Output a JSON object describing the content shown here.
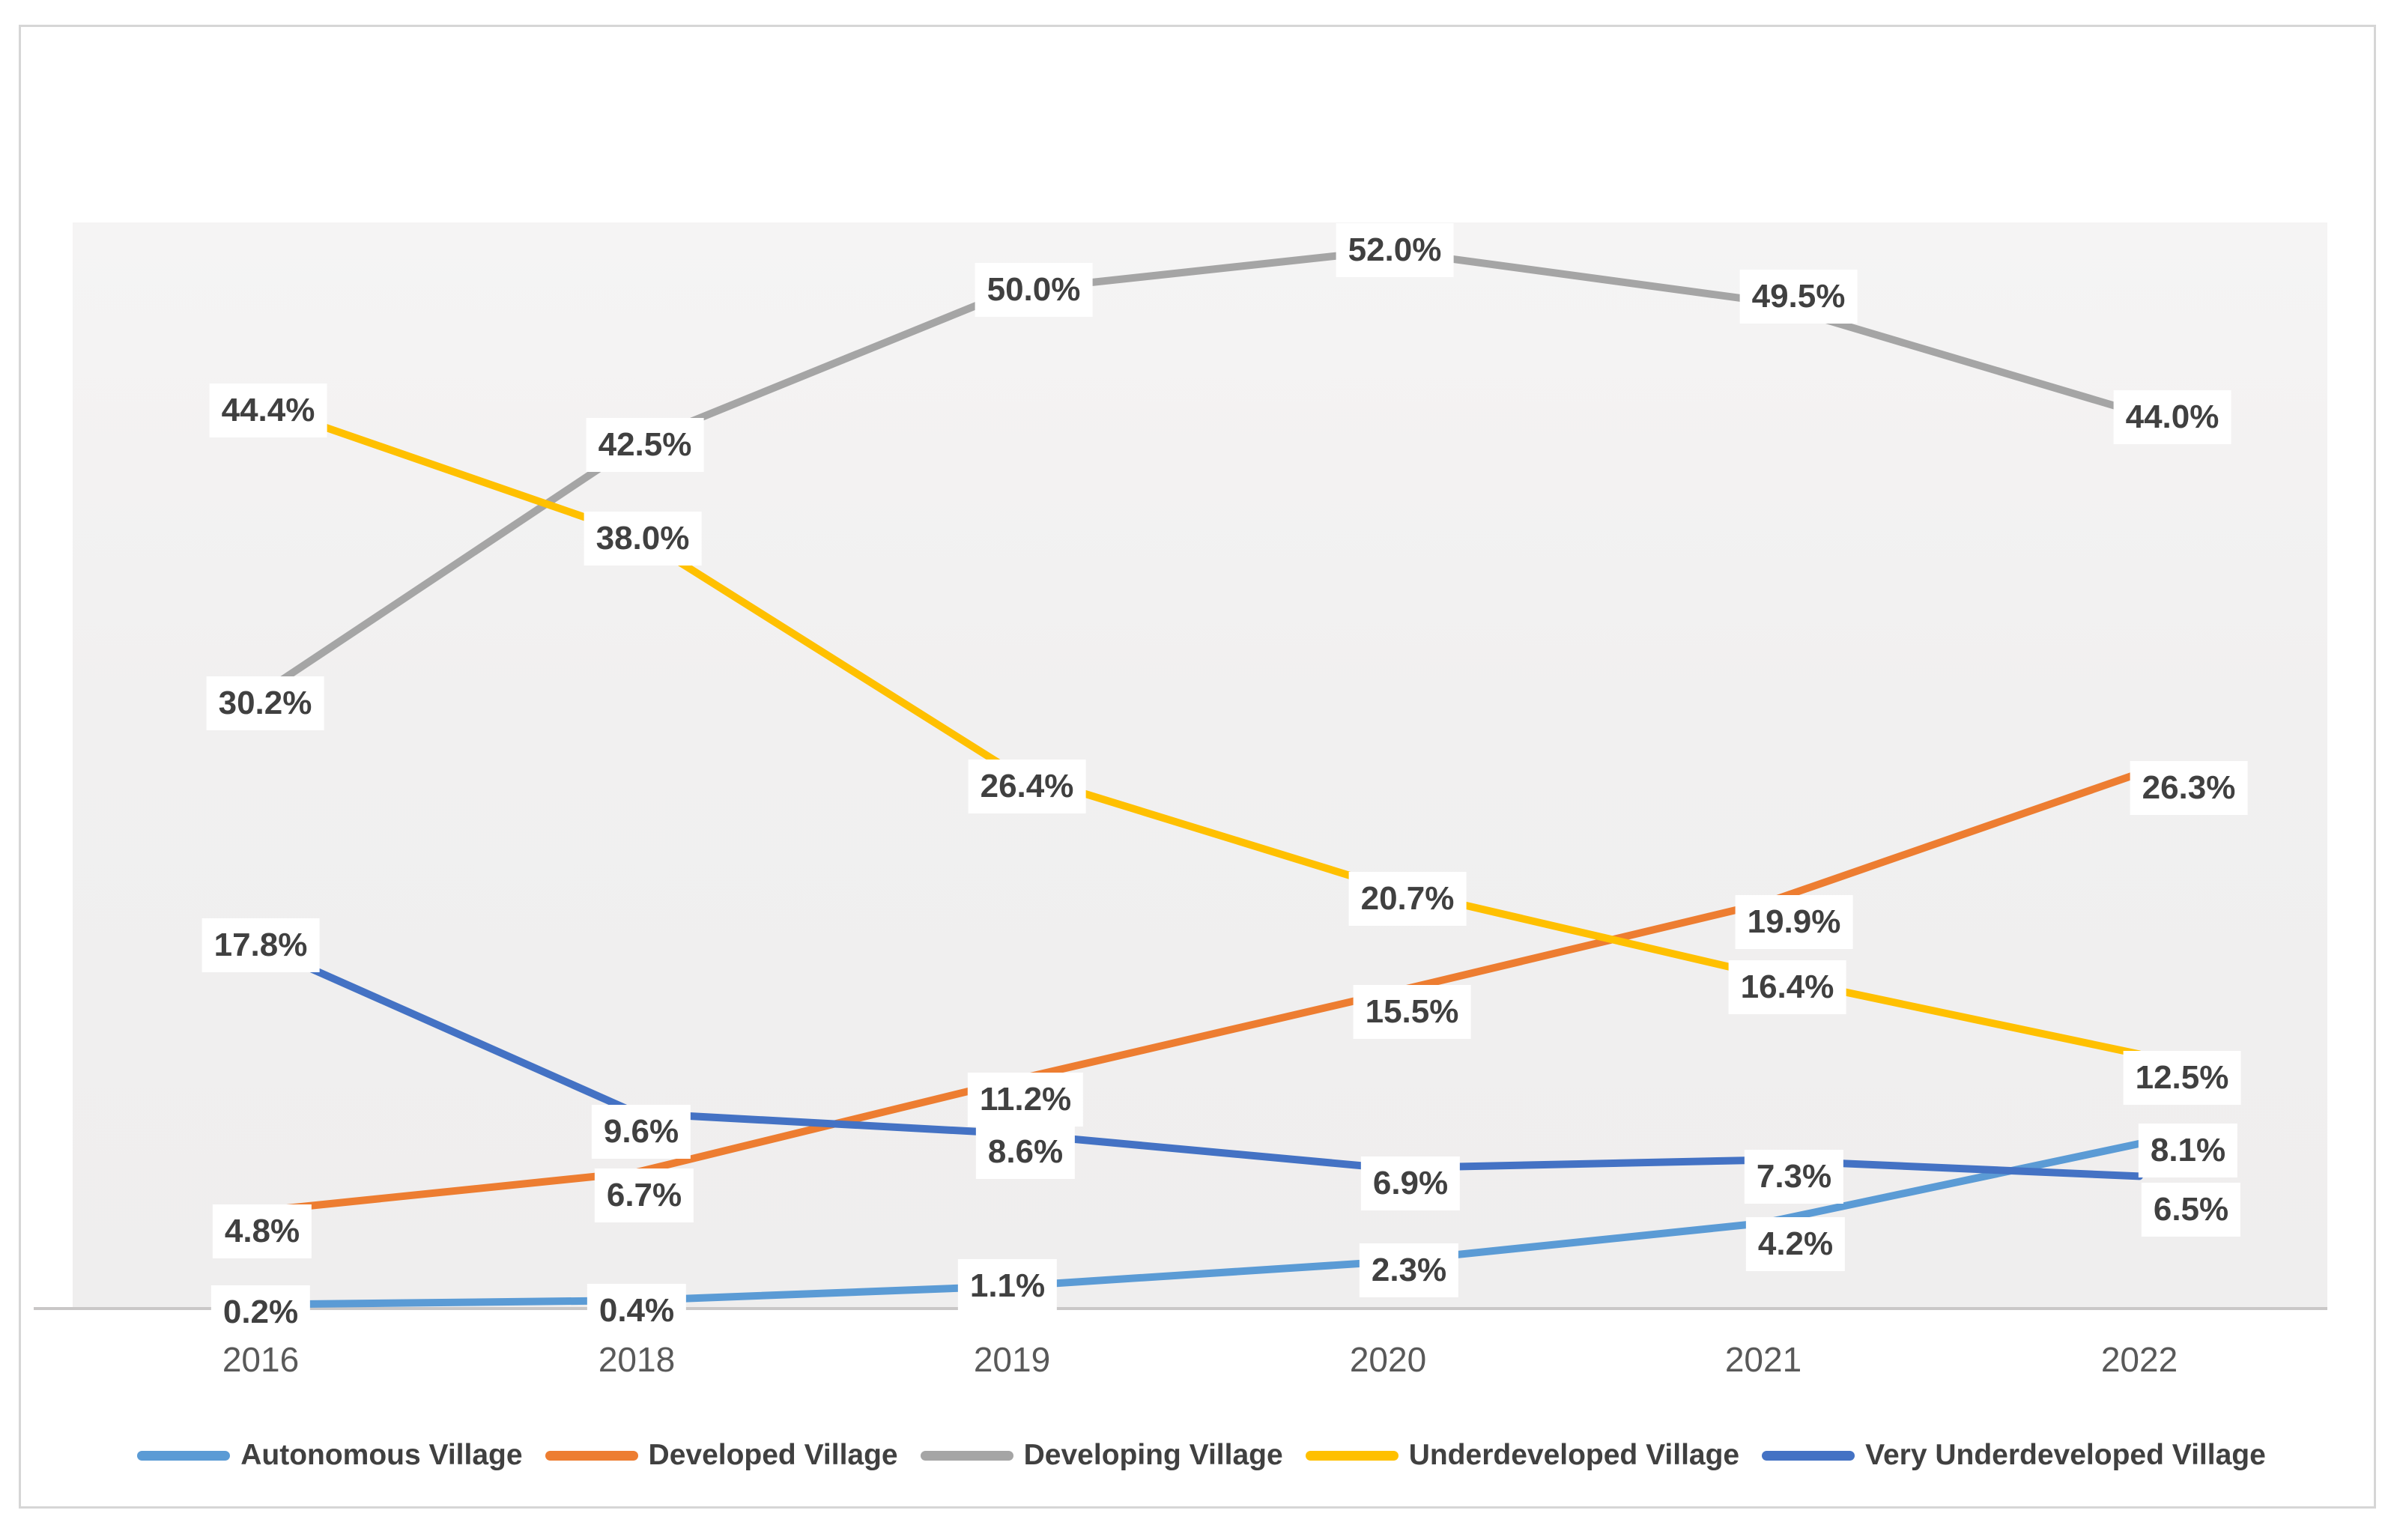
{
  "chart_data": {
    "type": "line",
    "title": "",
    "xlabel": "",
    "ylabel": "",
    "categories": [
      "2016",
      "2018",
      "2019",
      "2020",
      "2021",
      "2022"
    ],
    "series": [
      {
        "name": "Autonomous Village",
        "color": "#5B9BD5",
        "values": [
          0.2,
          0.4,
          1.1,
          2.3,
          4.2,
          8.1
        ],
        "labels": [
          "0.2%",
          "0.4%",
          "1.1%",
          "2.3%",
          "4.2%",
          "8.1%"
        ]
      },
      {
        "name": "Developed Village",
        "color": "#ED7D31",
        "values": [
          4.8,
          6.7,
          11.2,
          15.5,
          19.9,
          26.3
        ],
        "labels": [
          "4.8%",
          "6.7%",
          "11.2%",
          "15.5%",
          "19.9%",
          "26.3%"
        ]
      },
      {
        "name": "Developing Village",
        "color": "#A5A5A5",
        "values": [
          30.2,
          42.5,
          50.0,
          52.0,
          49.5,
          44.0
        ],
        "labels": [
          "30.2%",
          "42.5%",
          "50.0%",
          "52.0%",
          "49.5%",
          "44.0%"
        ]
      },
      {
        "name": "Underdeveloped Village",
        "color": "#FFC000",
        "values": [
          44.4,
          38.0,
          26.4,
          20.7,
          16.4,
          12.5
        ],
        "labels": [
          "44.4%",
          "38.0%",
          "26.4%",
          "20.7%",
          "16.4%",
          "12.5%"
        ]
      },
      {
        "name": "Very Underdeveloped Village",
        "color": "#4472C4",
        "values": [
          17.8,
          9.6,
          8.6,
          6.9,
          7.3,
          6.5
        ],
        "labels": [
          "17.8%",
          "9.6%",
          "8.6%",
          "6.9%",
          "7.3%",
          "6.5%"
        ]
      }
    ],
    "ylim": [
      0,
      53.4
    ],
    "grid": false,
    "legend_position": "bottom",
    "axis_line_color": "#c9c7c7",
    "plot_bg_color": "#f0efef",
    "label_text_color": "#404040",
    "tick_text_color": "#595959"
  }
}
